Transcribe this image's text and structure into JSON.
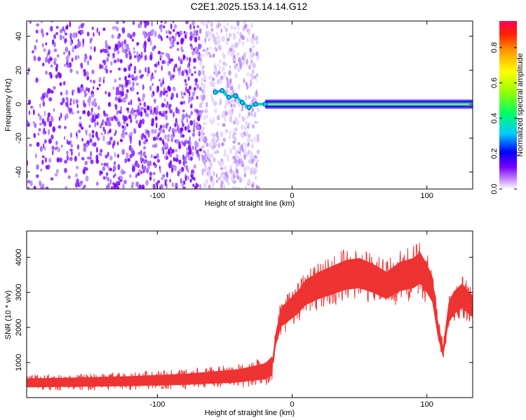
{
  "title": "C2E1.2025.153.14.14.G12",
  "chart_data": [
    {
      "type": "heatmap",
      "xlabel": "Height of straight line (km)",
      "ylabel": "Frequency (Hz)",
      "xlim": [
        -197,
        134
      ],
      "ylim": [
        -50,
        49
      ],
      "xticks": [
        -100,
        0,
        100
      ],
      "yticks": [
        -40,
        -20,
        0,
        20,
        40
      ],
      "noise_region_x": [
        -197,
        -25
      ],
      "signal_track": [
        {
          "x": -57,
          "y": 7
        },
        {
          "x": -52,
          "y": 8
        },
        {
          "x": -47,
          "y": 4
        },
        {
          "x": -42,
          "y": 5
        },
        {
          "x": -37,
          "y": 1
        },
        {
          "x": -32,
          "y": -2
        },
        {
          "x": -27,
          "y": 0
        },
        {
          "x": -20,
          "y": 0
        },
        {
          "x": 0,
          "y": -1
        },
        {
          "x": 50,
          "y": 0
        },
        {
          "x": 100,
          "y": 0
        },
        {
          "x": 134,
          "y": 0
        }
      ],
      "colorbar": {
        "label": "Normalized spectral amplitude",
        "range": [
          0,
          0.95
        ],
        "ticks": [
          0.0,
          0.2,
          0.4,
          0.6,
          0.8
        ]
      }
    },
    {
      "type": "line",
      "xlabel": "Height of straight line (km)",
      "ylabel": "SNR (10 * v/v)",
      "xlim": [
        -197,
        134
      ],
      "ylim": [
        0,
        4750
      ],
      "xticks": [
        -100,
        0,
        100
      ],
      "yticks": [
        1000,
        2000,
        3000,
        4000
      ],
      "color": "#ee3333",
      "series": [
        {
          "x": [
            -197,
            -160,
            -120,
            -80,
            -40,
            -20,
            -15,
            -12,
            -8,
            -2,
            5,
            10,
            20,
            30,
            40,
            50,
            60,
            70,
            80,
            90,
            95,
            100,
            104,
            108,
            112,
            116,
            120,
            126,
            134
          ],
          "values": [
            420,
            440,
            470,
            520,
            620,
            750,
            900,
            1700,
            2300,
            2500,
            2750,
            3000,
            3200,
            3350,
            3500,
            3550,
            3400,
            3200,
            3450,
            3550,
            3700,
            3400,
            3100,
            2000,
            1300,
            2400,
            2700,
            2900,
            2600
          ]
        }
      ]
    }
  ]
}
